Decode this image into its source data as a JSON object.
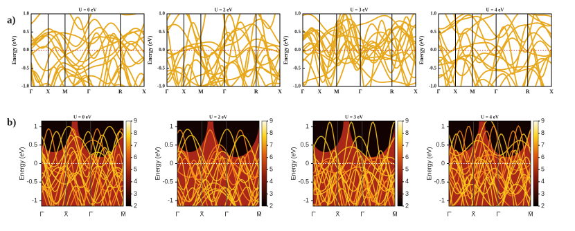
{
  "band_structures": {
    "panel_label": "a)",
    "ylabel": "Energy (eV)",
    "ylim": [
      -1,
      1
    ],
    "yticks": [
      {
        "value": -1,
        "label": "-1.0"
      },
      -0.5,
      {
        "value": 0,
        "label": "0.0"
      },
      0.5,
      {
        "value": 1,
        "label": "1.0"
      }
    ],
    "xlim": [
      0,
      1
    ],
    "kpoints": [
      {
        "value": 0,
        "label": "Γ"
      },
      {
        "value": 0.15,
        "label": "X"
      },
      {
        "value": 0.3,
        "label": "M"
      },
      {
        "value": 0.51,
        "label": "Γ"
      },
      {
        "value": 0.79,
        "label": "R"
      },
      {
        "value": 1,
        "label": "X"
      }
    ],
    "panels": [
      {
        "title": "U = 0 eV"
      },
      {
        "title": "U = 2 eV"
      },
      {
        "title": "U = 3 eV"
      },
      {
        "title": "U = 4 eV"
      }
    ]
  },
  "spectral_functions": {
    "panel_label": "b)",
    "ylabel": "Energy (eV)",
    "ylim": [
      -1.15,
      1.15
    ],
    "yticks": [
      1,
      0.5,
      0,
      -0.5,
      -1
    ],
    "xlim": [
      0,
      1
    ],
    "kpoints": [
      {
        "value": 0,
        "label": "Γ̄"
      },
      {
        "value": 0.3,
        "label": "X̄"
      },
      {
        "value": 0.6,
        "label": "Γ̄"
      },
      {
        "value": 1,
        "label": "M̄"
      }
    ],
    "clim": [
      2,
      9
    ],
    "cticks": [
      2,
      3,
      4,
      5,
      6,
      7,
      8,
      9
    ],
    "panels": [
      {
        "title": "U = 0 eV"
      },
      {
        "title": "U = 2 eV"
      },
      {
        "title": "U = 3 eV"
      },
      {
        "title": "U = 4 eV"
      }
    ]
  }
}
